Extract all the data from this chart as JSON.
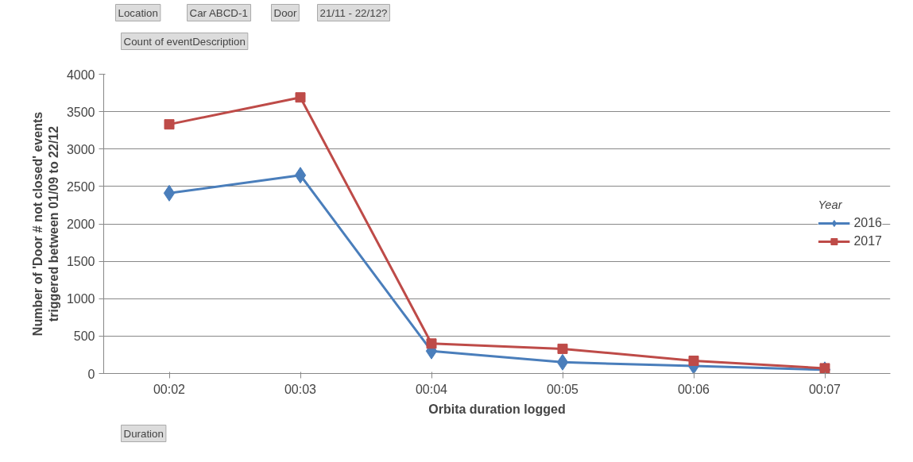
{
  "chart_data": {
    "type": "line",
    "xlabel": "Orbita duration logged",
    "ylabel": "Number of 'Door # not closed' events triggered between 01/09 to 22/12",
    "legend_title": "Year",
    "categories": [
      "00:02",
      "00:03",
      "00:04",
      "00:05",
      "00:06",
      "00:07"
    ],
    "series": [
      {
        "name": "2016",
        "color": "#4a7ebb",
        "marker": "diamond",
        "values": [
          2410,
          2650,
          300,
          150,
          100,
          50
        ]
      },
      {
        "name": "2017",
        "color": "#be4b48",
        "marker": "square",
        "values": [
          3330,
          3690,
          400,
          330,
          170,
          70
        ]
      }
    ],
    "ylim": [
      0,
      4000
    ],
    "yticks": [
      0,
      500,
      1000,
      1500,
      2000,
      2500,
      3000,
      3500,
      4000
    ],
    "grid": "y",
    "legend": "right",
    "line_style": "solid",
    "annotations": [
      "Location",
      "Car ABCD-1",
      "Door",
      "21/11 - 22/12?",
      "Count of eventDescription",
      "Duration"
    ]
  }
}
